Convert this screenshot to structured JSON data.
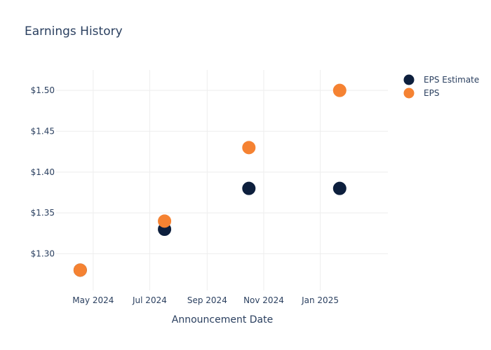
{
  "chart_data": {
    "type": "scatter",
    "title": "Earnings History",
    "xlabel": "Announcement Date",
    "ylabel": "",
    "x_axis": {
      "type": "date",
      "range": [
        "2024-03-22",
        "2025-03-15"
      ],
      "ticks": [
        {
          "date": "2024-05-01",
          "label": "May 2024"
        },
        {
          "date": "2024-07-01",
          "label": "Jul 2024"
        },
        {
          "date": "2024-09-01",
          "label": "Sep 2024"
        },
        {
          "date": "2024-11-01",
          "label": "Nov 2024"
        },
        {
          "date": "2025-01-01",
          "label": "Jan 2025"
        }
      ]
    },
    "y_axis": {
      "range": [
        1.255,
        1.525
      ],
      "ticks": [
        {
          "value": 1.3,
          "label": "$1.30"
        },
        {
          "value": 1.35,
          "label": "$1.35"
        },
        {
          "value": 1.4,
          "label": "$1.40"
        },
        {
          "value": 1.45,
          "label": "$1.45"
        },
        {
          "value": 1.5,
          "label": "$1.50"
        }
      ]
    },
    "grid": true,
    "legend_position": "top-right",
    "series": [
      {
        "name": "EPS Estimate",
        "color": "#0d1f3d",
        "points": [
          {
            "x": "2024-04-17",
            "y": 1.28
          },
          {
            "x": "2024-07-17",
            "y": 1.33
          },
          {
            "x": "2024-10-16",
            "y": 1.38
          },
          {
            "x": "2025-01-22",
            "y": 1.38
          }
        ]
      },
      {
        "name": "EPS",
        "color": "#f58232",
        "points": [
          {
            "x": "2024-04-17",
            "y": 1.28
          },
          {
            "x": "2024-07-17",
            "y": 1.34
          },
          {
            "x": "2024-10-16",
            "y": 1.43
          },
          {
            "x": "2025-01-22",
            "y": 1.5
          }
        ]
      }
    ]
  }
}
